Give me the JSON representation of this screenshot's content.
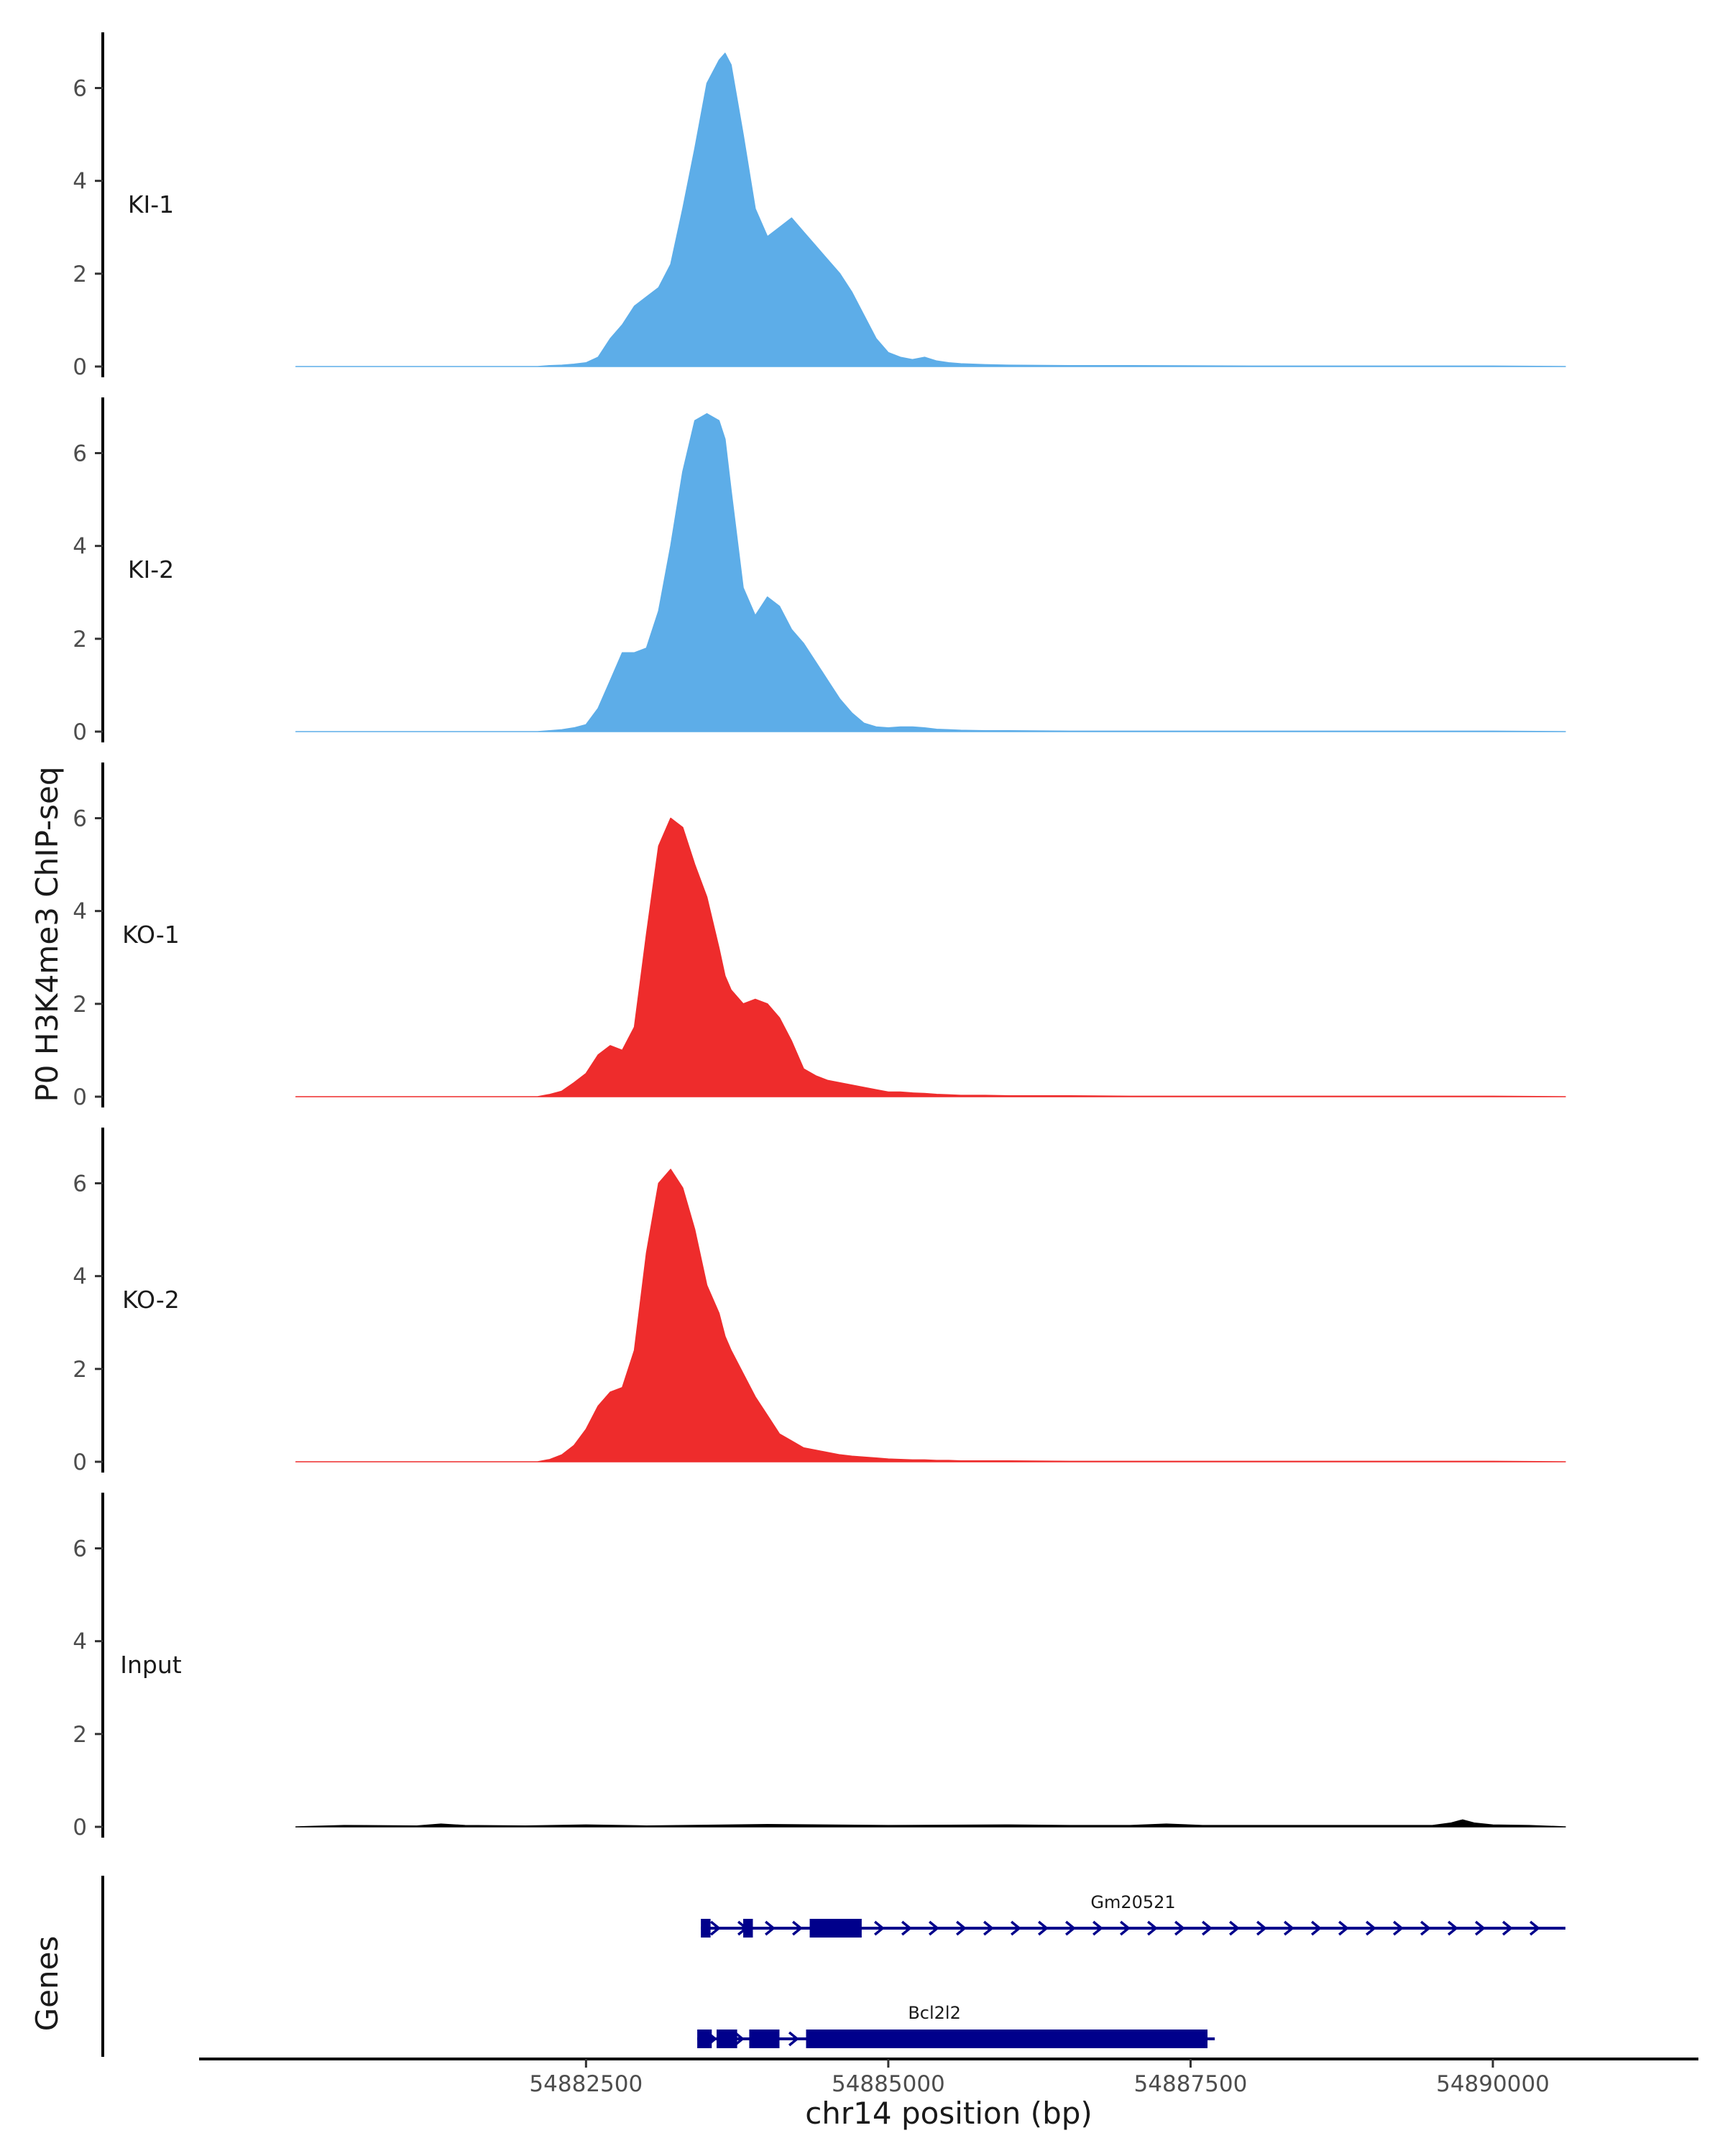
{
  "chart_data": {
    "type": "area",
    "ylabel": "P0 H3K4me3 ChIP-seq",
    "xlabel": "chr14 position (bp)",
    "genes_label": "Genes",
    "xlim": [
      54879300,
      54891700
    ],
    "ylim": [
      0,
      7.2
    ],
    "x_ticks": [
      54882500,
      54885000,
      54887500,
      54890000
    ],
    "x_tick_labels": [
      "54882500",
      "54885000",
      "54887500",
      "54890000"
    ],
    "y_ticks": [
      0,
      2,
      4,
      6
    ],
    "y_tick_labels": [
      "0",
      "2",
      "4",
      "6"
    ],
    "colors": {
      "KI": "#5dade8",
      "KO": "#ee2c2c",
      "Input": "#000000",
      "gene": "#00008b",
      "axis": "#000000"
    },
    "tracks": [
      {
        "name": "KI-1",
        "color": "#5dade8",
        "x": [
          54880100,
          54882100,
          54882200,
          54882300,
          54882400,
          54882500,
          54882600,
          54882700,
          54882800,
          54882900,
          54883000,
          54883100,
          54883200,
          54883300,
          54883400,
          54883500,
          54883600,
          54883650,
          54883700,
          54883800,
          54883900,
          54884000,
          54884100,
          54884200,
          54884300,
          54884400,
          54884500,
          54884600,
          54884700,
          54884800,
          54884900,
          54885000,
          54885100,
          54885200,
          54885300,
          54885400,
          54885500,
          54885600,
          54885800,
          54886000,
          54886500,
          54887000,
          54888000,
          54889000,
          54890000,
          54890600
        ],
        "y": [
          0,
          0,
          0.02,
          0.03,
          0.05,
          0.08,
          0.2,
          0.6,
          0.9,
          1.3,
          1.5,
          1.7,
          2.2,
          3.4,
          4.7,
          6.1,
          6.6,
          6.75,
          6.5,
          5.0,
          3.4,
          2.8,
          3.0,
          3.2,
          2.9,
          2.6,
          2.3,
          2.0,
          1.6,
          1.1,
          0.6,
          0.3,
          0.2,
          0.15,
          0.2,
          0.12,
          0.08,
          0.06,
          0.04,
          0.03,
          0.02,
          0.02,
          0.01,
          0.01,
          0.01,
          0
        ]
      },
      {
        "name": "KI-2",
        "color": "#5dade8",
        "x": [
          54880100,
          54882100,
          54882200,
          54882300,
          54882400,
          54882500,
          54882600,
          54882700,
          54882800,
          54882900,
          54883000,
          54883100,
          54883200,
          54883300,
          54883400,
          54883500,
          54883600,
          54883650,
          54883700,
          54883800,
          54883900,
          54884000,
          54884100,
          54884200,
          54884300,
          54884400,
          54884500,
          54884600,
          54884700,
          54884800,
          54884900,
          54885000,
          54885100,
          54885200,
          54885300,
          54885400,
          54885500,
          54885600,
          54885800,
          54886000,
          54886500,
          54887000,
          54888000,
          54889000,
          54890000,
          54890600
        ],
        "y": [
          0,
          0,
          0.02,
          0.04,
          0.08,
          0.15,
          0.5,
          1.1,
          1.7,
          1.7,
          1.8,
          2.6,
          4.0,
          5.6,
          6.7,
          6.85,
          6.7,
          6.3,
          5.2,
          3.1,
          2.5,
          2.9,
          2.7,
          2.2,
          1.9,
          1.5,
          1.1,
          0.7,
          0.4,
          0.18,
          0.1,
          0.08,
          0.1,
          0.1,
          0.08,
          0.05,
          0.04,
          0.03,
          0.02,
          0.02,
          0.01,
          0.01,
          0.01,
          0.01,
          0.01,
          0
        ]
      },
      {
        "name": "KO-1",
        "color": "#ee2c2c",
        "x": [
          54880100,
          54882100,
          54882200,
          54882300,
          54882400,
          54882500,
          54882600,
          54882700,
          54882800,
          54882900,
          54883000,
          54883100,
          54883200,
          54883300,
          54883400,
          54883500,
          54883600,
          54883650,
          54883700,
          54883800,
          54883900,
          54884000,
          54884100,
          54884200,
          54884300,
          54884400,
          54884500,
          54884600,
          54884700,
          54884800,
          54884900,
          54885000,
          54885100,
          54885200,
          54885300,
          54885400,
          54885500,
          54885600,
          54885800,
          54886000,
          54886500,
          54887000,
          54888000,
          54889000,
          54890000,
          54890600
        ],
        "y": [
          0,
          0,
          0.05,
          0.12,
          0.3,
          0.5,
          0.9,
          1.1,
          1.0,
          1.5,
          3.5,
          5.4,
          6.0,
          5.8,
          5.0,
          4.3,
          3.2,
          2.6,
          2.3,
          2.0,
          2.1,
          2.0,
          1.7,
          1.2,
          0.6,
          0.45,
          0.35,
          0.3,
          0.25,
          0.2,
          0.15,
          0.1,
          0.1,
          0.08,
          0.07,
          0.05,
          0.04,
          0.03,
          0.03,
          0.02,
          0.02,
          0.01,
          0.01,
          0.01,
          0.01,
          0
        ]
      },
      {
        "name": "KO-2",
        "color": "#ee2c2c",
        "x": [
          54880100,
          54882100,
          54882200,
          54882300,
          54882400,
          54882500,
          54882600,
          54882700,
          54882800,
          54882900,
          54883000,
          54883100,
          54883200,
          54883300,
          54883400,
          54883500,
          54883600,
          54883650,
          54883700,
          54883800,
          54883900,
          54884000,
          54884100,
          54884200,
          54884300,
          54884400,
          54884500,
          54884600,
          54884700,
          54884800,
          54884900,
          54885000,
          54885100,
          54885200,
          54885300,
          54885400,
          54885500,
          54885600,
          54885800,
          54886000,
          54886500,
          54887000,
          54888000,
          54889000,
          54890000,
          54890600
        ],
        "y": [
          0,
          0,
          0.05,
          0.15,
          0.35,
          0.7,
          1.2,
          1.5,
          1.6,
          2.4,
          4.5,
          6.0,
          6.3,
          5.9,
          5.0,
          3.8,
          3.2,
          2.7,
          2.4,
          1.9,
          1.4,
          1.0,
          0.6,
          0.45,
          0.3,
          0.25,
          0.2,
          0.15,
          0.12,
          0.1,
          0.08,
          0.06,
          0.05,
          0.04,
          0.04,
          0.03,
          0.03,
          0.02,
          0.02,
          0.02,
          0.01,
          0.01,
          0.01,
          0.01,
          0.01,
          0
        ]
      },
      {
        "name": "Input",
        "color": "#000000",
        "x": [
          54880100,
          54880500,
          54881100,
          54881300,
          54881500,
          54882000,
          54882500,
          54883000,
          54884000,
          54885000,
          54886000,
          54886500,
          54887000,
          54887300,
          54887600,
          54888000,
          54888500,
          54889000,
          54889500,
          54889650,
          54889750,
          54889850,
          54890000,
          54890300,
          54890600
        ],
        "y": [
          0,
          0.03,
          0.02,
          0.06,
          0.03,
          0.02,
          0.04,
          0.02,
          0.05,
          0.03,
          0.04,
          0.03,
          0.03,
          0.06,
          0.03,
          0.03,
          0.03,
          0.03,
          0.03,
          0.08,
          0.15,
          0.08,
          0.04,
          0.03,
          0
        ]
      }
    ],
    "genes": [
      {
        "name": "Gm20521",
        "strand": "+",
        "start": 54883450,
        "end": 54890600,
        "exons": [
          [
            54883450,
            54883530
          ],
          [
            54883800,
            54883880
          ],
          [
            54884350,
            54884780
          ]
        ]
      },
      {
        "name": "Bcl2l2",
        "strand": "+",
        "start": 54883420,
        "end": 54887700,
        "exons": [
          [
            54883420,
            54883540
          ],
          [
            54883580,
            54883750
          ],
          [
            54883850,
            54884100
          ],
          [
            54884320,
            54887640
          ]
        ]
      }
    ]
  }
}
